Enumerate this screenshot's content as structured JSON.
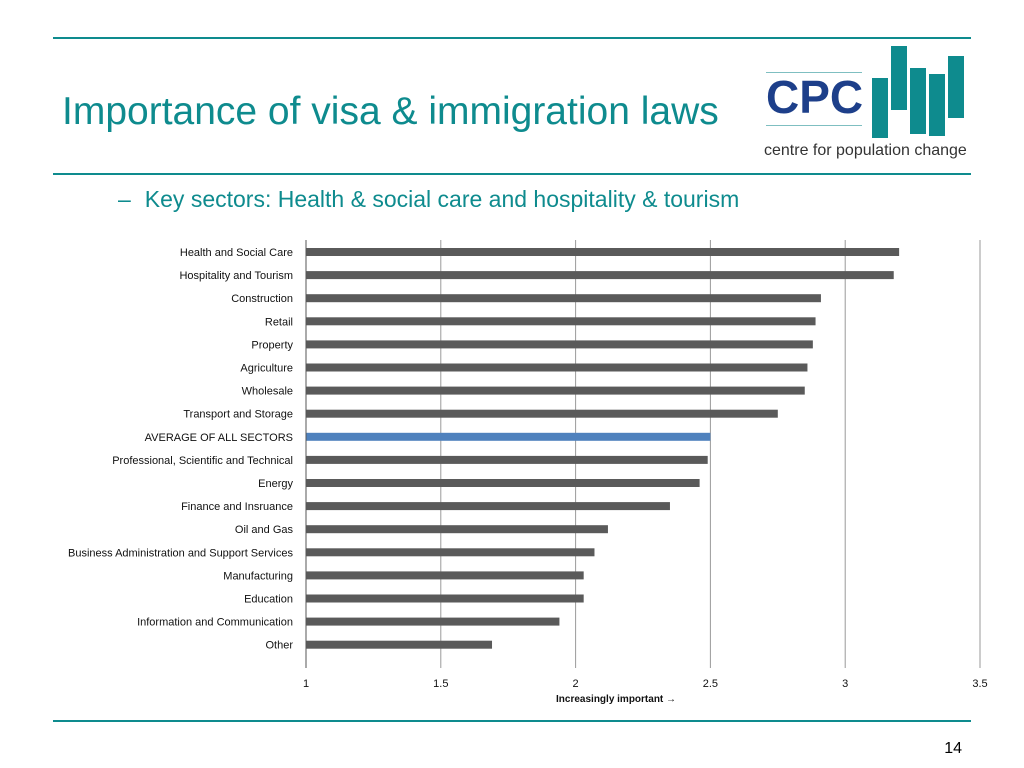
{
  "slide": {
    "title": "Importance of visa & immigration laws",
    "subtitle_dash": "–",
    "subtitle": "Key sectors: Health & social care and hospitality & tourism",
    "page_number": "14",
    "accent_color": "#0e8b8e"
  },
  "logo": {
    "abbr": "CPC",
    "tagline": "centre for population change",
    "abbr_color": "#1d3f8a",
    "bar_color": "#0e8b8e"
  },
  "chart_data": {
    "type": "bar",
    "orientation": "horizontal",
    "categories": [
      "Health and Social Care",
      "Hospitality and Tourism",
      "Construction",
      "Retail",
      "Property",
      "Agriculture",
      "Wholesale",
      "Transport and Storage",
      "AVERAGE OF ALL SECTORS",
      "Professional, Scientific and Technical",
      "Energy",
      "Finance and Insruance",
      "Oil and Gas",
      "Business Administration and Support Services",
      "Manufacturing",
      "Education",
      "Information and Communication",
      "Other"
    ],
    "values": [
      3.2,
      3.18,
      2.91,
      2.89,
      2.88,
      2.86,
      2.85,
      2.75,
      2.5,
      2.49,
      2.46,
      2.35,
      2.12,
      2.07,
      2.03,
      2.03,
      1.94,
      1.69
    ],
    "highlight_index": 8,
    "xlabel": "Increasingly important →",
    "xlim": [
      1,
      3.5
    ],
    "xticks": [
      "1",
      "1.5",
      "2",
      "2.5",
      "3",
      "3.5"
    ],
    "tick_values": [
      1,
      1.5,
      2,
      2.5,
      3,
      3.5
    ],
    "grid": "vertical",
    "bar_color": "#5a5a5a",
    "highlight_color": "#4f81bd",
    "grid_color": "#9a9a9a"
  }
}
